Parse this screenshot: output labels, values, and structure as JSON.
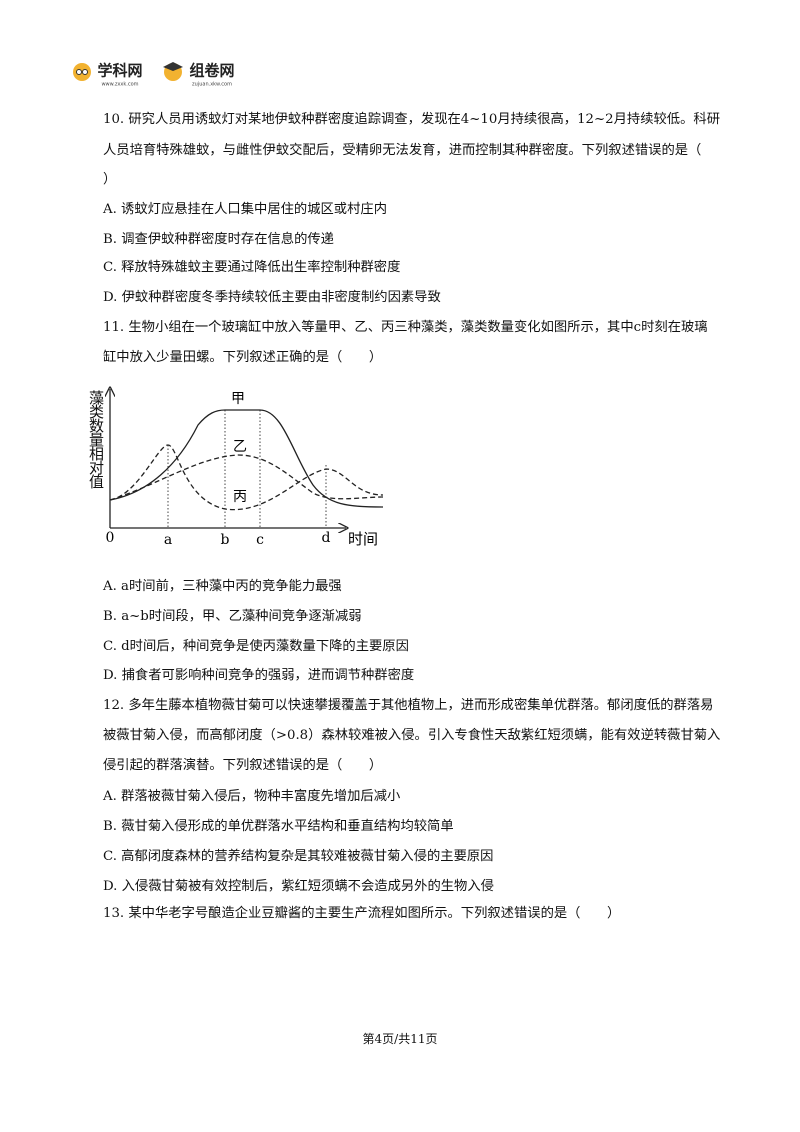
{
  "header": {
    "logo1": "学科网",
    "logo1_sub": "www.zxxk.com",
    "logo2": "组卷网",
    "logo2_sub": "zujuan.xkw.com"
  },
  "questions": [
    {
      "lines": [
        "10. 研究人员用诱蚊灯对某地伊蚊种群密度追踪调查，发现在4~10月持续很高，12~2月持续较低。科研",
        "人员培育特殊雄蚊，与雌性伊蚊交配后，受精卵无法发育，进而控制其种群密度。下列叙述错误的是（",
        "）"
      ],
      "options": [
        "A. 诱蚊灯应悬挂在人口集中居住的城区或村庄内",
        "B. 调查伊蚊种群密度时存在信息的传递",
        "C. 释放特殊雄蚊主要通过降低出生率控制种群密度",
        "D. 伊蚊种群密度冬季持续较低主要由非密度制约因素导致"
      ]
    },
    {
      "lines": [
        "11. 生物小组在一个玻璃缸中放入等量甲、乙、丙三种藻类，藻类数量变化如图所示，其中c时刻在玻璃",
        "缸中放入少量田螺。下列叙述正确的是（　　）"
      ],
      "options": [
        "A. a时间前，三种藻中丙的竞争能力最强",
        "B. a~b时间段，甲、乙藻种间竞争逐渐减弱",
        "C. d时间后，种间竞争是使丙藻数量下降的主要原因",
        "D. 捕食者可影响种间竞争的强弱，进而调节种群密度"
      ]
    },
    {
      "lines": [
        "12. 多年生藤本植物薇甘菊可以快速攀援覆盖于其他植物上，进而形成密集单优群落。郁闭度低的群落易",
        "被薇甘菊入侵，而高郁闭度（>0.8）森林较难被入侵。引入专食性天敌紫红短须螨，能有效逆转薇甘菊入",
        "侵引起的群落演替。下列叙述错误的是（　　）"
      ],
      "options": [
        "A. 群落被薇甘菊入侵后，物种丰富度先增加后减小",
        "B. 薇甘菊入侵形成的单优群落水平结构和垂直结构均较简单",
        "C. 高郁闭度森林的营养结构复杂是其较难被薇甘菊入侵的主要原因",
        "D. 入侵薇甘菊被有效控制后，紫红短须螨不会造成另外的生物入侵"
      ]
    },
    {
      "lines": [
        "13. 某中华老字号酿造企业豆瓣酱的主要生产流程如图所示。下列叙述错误的是（　　）"
      ],
      "options": []
    }
  ],
  "figure": {
    "y_label": "藻类数量相对值",
    "x_label": "时间",
    "origin": "0",
    "points": [
      "a",
      "b",
      "c",
      "d"
    ],
    "curves": [
      "甲",
      "乙",
      "丙"
    ]
  },
  "footer": "第4页/共11页"
}
